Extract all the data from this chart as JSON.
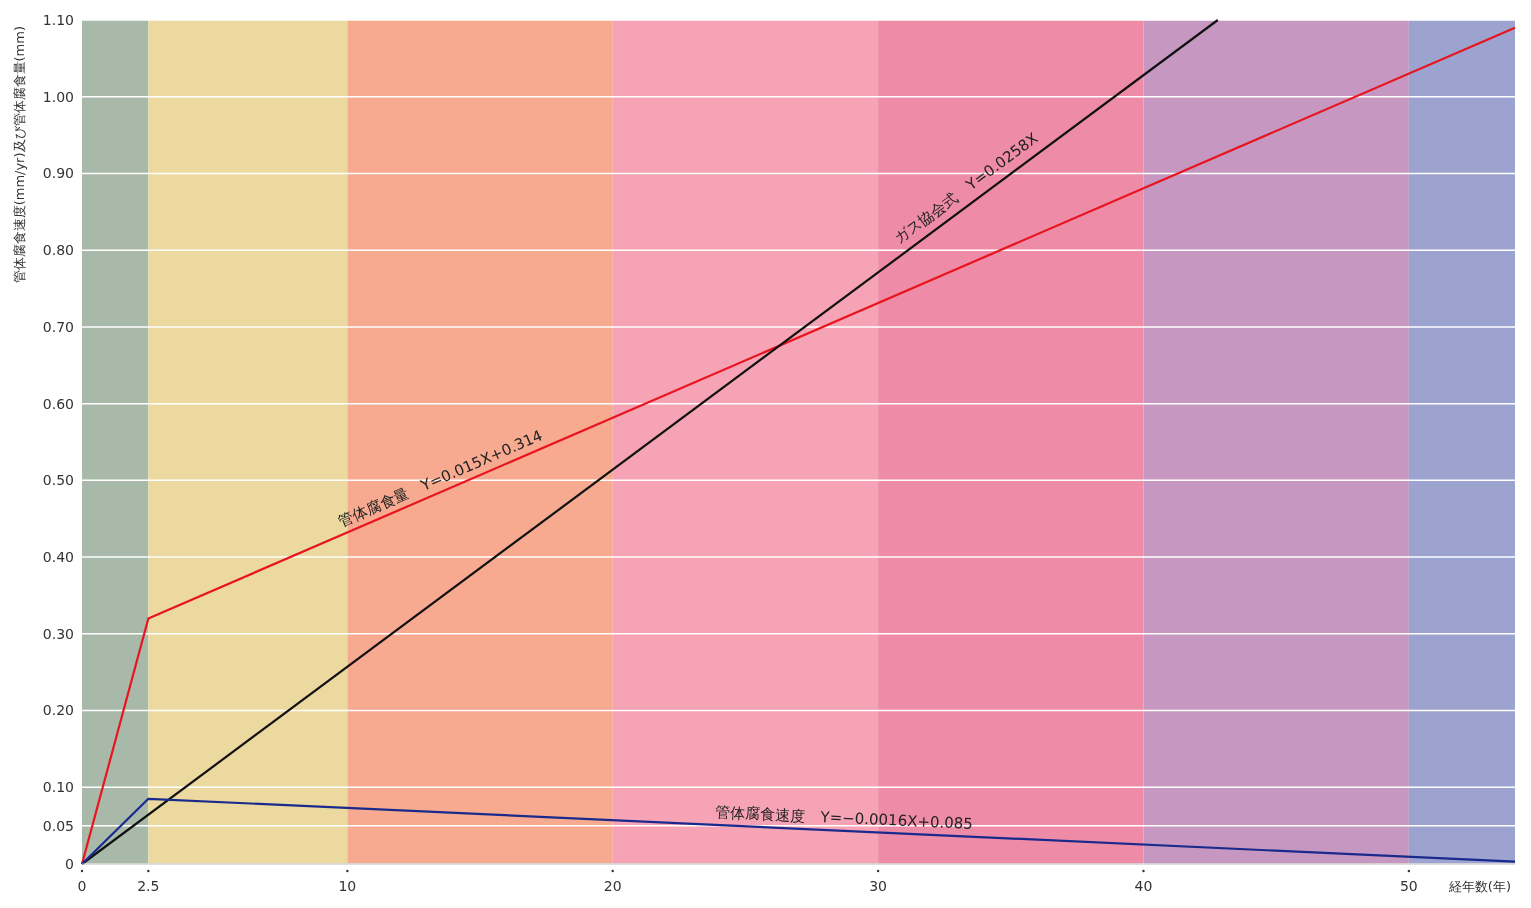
{
  "chart_data": {
    "type": "line",
    "xlabel": "経年数(年)",
    "ylabel": "管体腐食速度(mm/yr)及び管体腐食量(mm)",
    "series": [
      {
        "color": "#e8141e",
        "x": [
          0,
          2.5,
          54
        ],
        "values": [
          0,
          0.32,
          1.09
        ]
      },
      {
        "color": "#111111",
        "x": [
          0,
          42.8
        ],
        "values": [
          0,
          1.1
        ]
      },
      {
        "color": "#1a2a8c",
        "x": [
          0,
          2.5,
          54
        ],
        "values": [
          0,
          0.085,
          0.003
        ]
      }
    ],
    "xlim": [
      0,
      54
    ],
    "xticks": [
      0,
      2.5,
      10,
      20,
      30,
      40,
      50
    ],
    "ylim": [
      0,
      1.1
    ],
    "yticks": [
      0,
      0.05,
      {
        "value": 0.1,
        "label": "0.10"
      },
      {
        "value": 0.2,
        "label": "0.20"
      },
      {
        "value": 0.3,
        "label": "0.30"
      },
      {
        "value": 0.4,
        "label": "0.40"
      },
      {
        "value": 0.5,
        "label": "0.50"
      },
      {
        "value": 0.6,
        "label": "0.60"
      },
      {
        "value": 0.7,
        "label": "0.70"
      },
      {
        "value": 0.8,
        "label": "0.80"
      },
      {
        "value": 0.9,
        "label": "0.90"
      },
      {
        "value": 1.0,
        "label": "1.00"
      },
      {
        "value": 1.1,
        "label": "1.10"
      }
    ],
    "grid": "y",
    "bands": [
      {
        "axis": "x",
        "from": 0,
        "to": 2.5,
        "color": "#a9b9a9"
      },
      {
        "axis": "x",
        "from": 2.5,
        "to": 10,
        "color": "#ecd9a0"
      },
      {
        "axis": "x",
        "from": 10,
        "to": 20,
        "color": "#f7aa90"
      },
      {
        "axis": "x",
        "from": 20,
        "to": 30,
        "color": "#f6a3b5"
      },
      {
        "axis": "x",
        "from": 30,
        "to": 40,
        "color": "#ee8ba7"
      },
      {
        "axis": "x",
        "from": 40,
        "to": 50,
        "color": "#c698c1"
      },
      {
        "axis": "x",
        "from": 50,
        "to": 54,
        "color": "#9ca3cf"
      }
    ],
    "annotations": [
      {
        "text": "管体腐食量　Y=0.015X+0.314",
        "x": 13.7,
        "y": 0.487
      },
      {
        "text": "ガス協会式　Y=0.0258X",
        "x": 33.6,
        "y": 0.867
      },
      {
        "text": "管体腐食速度　Y=−0.0016X+0.085",
        "x": 28.7,
        "y": 0.043
      }
    ]
  }
}
